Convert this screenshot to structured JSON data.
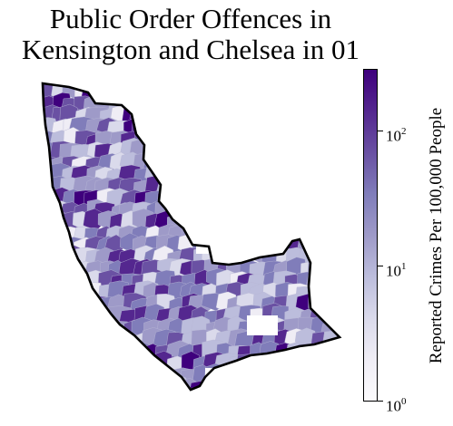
{
  "title_line1": "Public Order Offences in",
  "title_line2": "Kensington and Chelsea in 01",
  "map": {
    "borough": "Kensington and Chelsea",
    "palette": [
      "#fcfbfd",
      "#efedf5",
      "#dadaeb",
      "#bcbddc",
      "#9e9ac8",
      "#807dba",
      "#6a51a3",
      "#54278f",
      "#3f007d"
    ],
    "boundary_color": "#000000"
  },
  "colorbar": {
    "scale": "log",
    "label": "Reported Crimes Per 100,000 People",
    "ticks": [
      {
        "base": "10",
        "exp": "0"
      },
      {
        "base": "10",
        "exp": "1"
      },
      {
        "base": "10",
        "exp": "2"
      }
    ],
    "range": [
      1,
      250
    ]
  }
}
